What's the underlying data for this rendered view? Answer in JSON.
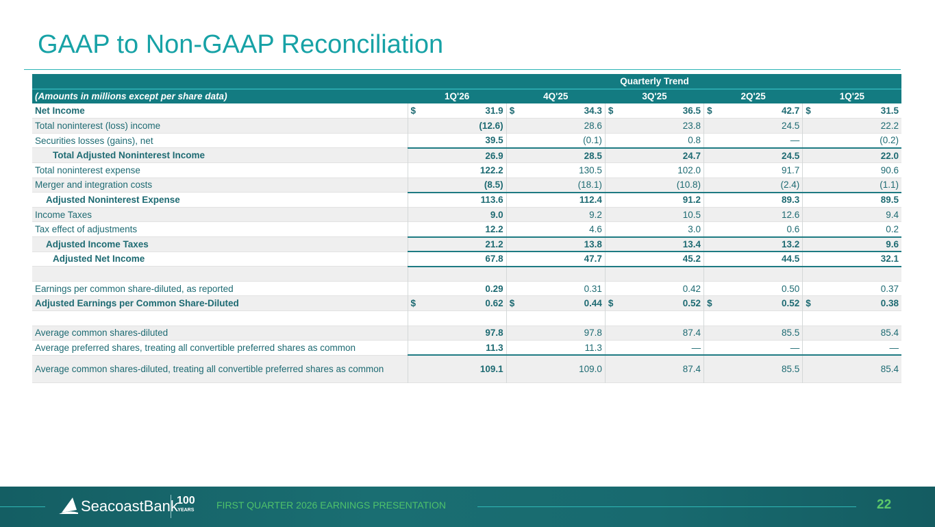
{
  "title": "GAAP to Non-GAAP Reconciliation",
  "table": {
    "group_header": "Quarterly Trend",
    "label_header": "(Amounts in millions except per share data)",
    "columns": [
      "1Q'26",
      "4Q'25",
      "3Q'25",
      "2Q'25",
      "1Q'25"
    ],
    "rows": [
      {
        "label": "Net Income",
        "dollar": true,
        "values": [
          "31.9",
          "34.3",
          "36.5",
          "42.7",
          "31.5"
        ]
      },
      {
        "label": "Total noninterest (loss) income",
        "values": [
          "(12.6)",
          "28.6",
          "23.8",
          "24.5",
          "22.2"
        ]
      },
      {
        "label": "Securities losses (gains), net",
        "values": [
          "39.5",
          "(0.1)",
          "0.8",
          "—",
          "(0.2)"
        ]
      },
      {
        "label": "Total Adjusted Noninterest Income",
        "values": [
          "26.9",
          "28.5",
          "24.7",
          "24.5",
          "22.0"
        ]
      },
      {
        "label": "Total noninterest expense",
        "values": [
          "122.2",
          "130.5",
          "102.0",
          "91.7",
          "90.6"
        ]
      },
      {
        "label": "Merger and integration costs",
        "values": [
          "(8.5)",
          "(18.1)",
          "(10.8)",
          "(2.4)",
          "(1.1)"
        ]
      },
      {
        "label": "Adjusted Noninterest Expense",
        "values": [
          "113.6",
          "112.4",
          "91.2",
          "89.3",
          "89.5"
        ]
      },
      {
        "label": "Income Taxes",
        "values": [
          "9.0",
          "9.2",
          "10.5",
          "12.6",
          "9.4"
        ]
      },
      {
        "label": "Tax effect of adjustments",
        "values": [
          "12.2",
          "4.6",
          "3.0",
          "0.6",
          "0.2"
        ]
      },
      {
        "label": "Adjusted Income Taxes",
        "values": [
          "21.2",
          "13.8",
          "13.4",
          "13.2",
          "9.6"
        ]
      },
      {
        "label": "Adjusted Net Income",
        "values": [
          "67.8",
          "47.7",
          "45.2",
          "44.5",
          "32.1"
        ]
      },
      {
        "label": "",
        "values": [
          "",
          "",
          "",
          "",
          ""
        ]
      },
      {
        "label": "Earnings per common share-diluted, as reported",
        "values": [
          "0.29",
          "0.31",
          "0.42",
          "0.50",
          "0.37"
        ]
      },
      {
        "label": "Adjusted Earnings per Common Share-Diluted",
        "dollar": true,
        "values": [
          "0.62",
          "0.44",
          "0.52",
          "0.52",
          "0.38"
        ]
      },
      {
        "label": "",
        "values": [
          "",
          "",
          "",
          "",
          ""
        ]
      },
      {
        "label": "Average common shares-diluted",
        "values": [
          "97.8",
          "97.8",
          "87.4",
          "85.5",
          "85.4"
        ]
      },
      {
        "label": "Average preferred shares, treating all convertible preferred shares as common",
        "values": [
          "11.3",
          "11.3",
          "—",
          "—",
          "—"
        ]
      },
      {
        "label": "Average common shares-diluted, treating all convertible preferred shares as common",
        "values": [
          "109.1",
          "109.0",
          "87.4",
          "85.5",
          "85.4"
        ]
      }
    ],
    "dollar_sign": "$"
  },
  "footer": {
    "brand": "SeacoastBank",
    "years_num": "100",
    "years_label": "YEARS",
    "text": "FIRST QUARTER 2026 EARNINGS PRESENTATION",
    "page": "22"
  }
}
